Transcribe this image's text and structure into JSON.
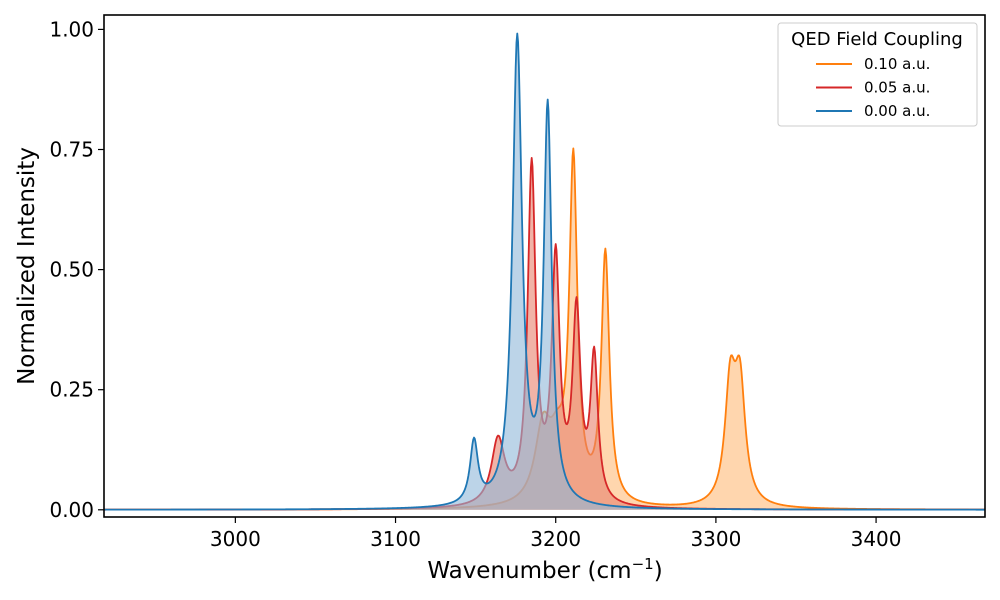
{
  "chart_data": {
    "type": "area",
    "xlabel": "Wavenumber (cm",
    "xlabel_sup": "−1",
    "xlabel_suffix": ")",
    "ylabel": "Normalized Intensity",
    "xlim": [
      2918,
      3468
    ],
    "ylim": [
      -0.015,
      1.03
    ],
    "xticks": [
      3000,
      3100,
      3200,
      3300,
      3400
    ],
    "xtick_labels": [
      "3000",
      "3100",
      "3200",
      "3300",
      "3400"
    ],
    "yticks": [
      0.0,
      0.25,
      0.5,
      0.75,
      1.0
    ],
    "ytick_labels": [
      "0.00",
      "0.25",
      "0.50",
      "0.75",
      "1.00"
    ],
    "grid": false,
    "legend": {
      "title": "QED Field Coupling",
      "placement": "top-right",
      "entries": [
        "0.10 a.u.",
        "0.05 a.u.",
        "0.00 a.u."
      ]
    },
    "series": [
      {
        "name": "0.10 a.u.",
        "color": "#ff7f0e",
        "fill": "#ffbb78",
        "peaks": [
          {
            "x": 3192,
            "y": 0.15,
            "w": 6
          },
          {
            "x": 3201,
            "y": 0.1,
            "w": 6
          },
          {
            "x": 3211,
            "y": 0.7,
            "w": 3
          },
          {
            "x": 3231,
            "y": 0.52,
            "w": 3
          },
          {
            "x": 3309,
            "y": 0.24,
            "w": 4
          },
          {
            "x": 3315,
            "y": 0.24,
            "w": 4
          }
        ]
      },
      {
        "name": "0.05 a.u.",
        "color": "#d62728",
        "fill": "#e8816c",
        "peaks": [
          {
            "x": 3164,
            "y": 0.135,
            "w": 5
          },
          {
            "x": 3185,
            "y": 0.7,
            "w": 3
          },
          {
            "x": 3200,
            "y": 0.5,
            "w": 3
          },
          {
            "x": 3213,
            "y": 0.39,
            "w": 3
          },
          {
            "x": 3224,
            "y": 0.3,
            "w": 2.8
          }
        ]
      },
      {
        "name": "0.00 a.u.",
        "color": "#1f77b4",
        "fill": "#8fb8d8",
        "peaks": [
          {
            "x": 3149,
            "y": 0.13,
            "w": 3
          },
          {
            "x": 3176,
            "y": 0.97,
            "w": 3.6
          },
          {
            "x": 3195,
            "y": 0.82,
            "w": 3
          }
        ]
      }
    ]
  }
}
